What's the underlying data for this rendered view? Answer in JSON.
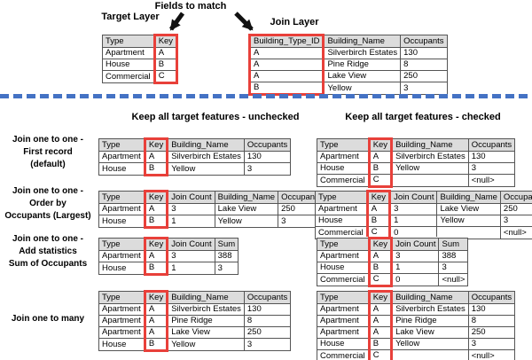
{
  "colors": {
    "red": "#e8403a",
    "blue": "#4472c4",
    "gray": "#dcdcdc"
  },
  "top": {
    "fields_to_match_label": "Fields to match",
    "target_layer_label": "Target Layer",
    "join_layer_label": "Join Layer",
    "target_table": {
      "columns": [
        "Type",
        "Key"
      ],
      "highlight_col": 1,
      "rows": [
        [
          "Apartment",
          "A"
        ],
        [
          "House",
          "B"
        ],
        [
          "Commercial",
          "C"
        ]
      ]
    },
    "join_table": {
      "columns": [
        "Building_Type_ID",
        "Building_Name",
        "Occupants"
      ],
      "highlight_col": 0,
      "rows": [
        [
          "A",
          "Silverbirch Estates",
          "130"
        ],
        [
          "A",
          "Pine Ridge",
          "8"
        ],
        [
          "A",
          "Lake View",
          "250"
        ],
        [
          "B",
          "Yellow",
          "3"
        ]
      ]
    }
  },
  "headers": {
    "unchecked": "Keep all target features - unchecked",
    "checked": "Keep all target features - checked"
  },
  "join_rows": [
    {
      "label_lines": [
        "Join one to one -",
        "First record",
        "(default)"
      ],
      "unchecked_table": {
        "columns": [
          "Type",
          "Key",
          "Building_Name",
          "Occupants"
        ],
        "highlight_col": 1,
        "rows": [
          [
            "Apartment",
            "A",
            "Silverbirch Estates",
            "130"
          ],
          [
            "House",
            "B",
            "Yellow",
            "3"
          ]
        ]
      },
      "checked_table": {
        "columns": [
          "Type",
          "Key",
          "Building_Name",
          "Occupants"
        ],
        "highlight_col": 1,
        "rows": [
          [
            "Apartment",
            "A",
            "Silverbirch Estates",
            "130"
          ],
          [
            "House",
            "B",
            "Yellow",
            "3"
          ],
          [
            "Commercial",
            "C",
            "",
            "<null>"
          ]
        ]
      }
    },
    {
      "label_lines": [
        "Join one to one -",
        "Order by",
        "Occupants (Largest)"
      ],
      "unchecked_table": {
        "columns": [
          "Type",
          "Key",
          "Join Count",
          "Building_Name",
          "Occupants"
        ],
        "highlight_col": 1,
        "rows": [
          [
            "Apartment",
            "A",
            "3",
            "Lake View",
            "250"
          ],
          [
            "House",
            "B",
            "1",
            "Yellow",
            "3"
          ]
        ]
      },
      "checked_table": {
        "columns": [
          "Type",
          "Key",
          "Join Count",
          "Building_Name",
          "Occupants"
        ],
        "highlight_col": 1,
        "rows": [
          [
            "Apartment",
            "A",
            "3",
            "Lake View",
            "250"
          ],
          [
            "House",
            "B",
            "1",
            "Yellow",
            "3"
          ],
          [
            "Commercial",
            "C",
            "0",
            "",
            "<null>"
          ]
        ]
      }
    },
    {
      "label_lines": [
        "Join one to one -",
        "Add statistics",
        "Sum of Occupants"
      ],
      "unchecked_table": {
        "columns": [
          "Type",
          "Key",
          "Join Count",
          "Sum"
        ],
        "highlight_col": 1,
        "rows": [
          [
            "Apartment",
            "A",
            "3",
            "388"
          ],
          [
            "House",
            "B",
            "1",
            "3"
          ]
        ]
      },
      "checked_table": {
        "columns": [
          "Type",
          "Key",
          "Join Count",
          "Sum"
        ],
        "highlight_col": 1,
        "rows": [
          [
            "Apartment",
            "A",
            "3",
            "388"
          ],
          [
            "House",
            "B",
            "1",
            "3"
          ],
          [
            "Commercial",
            "C",
            "0",
            "<null>"
          ]
        ]
      }
    },
    {
      "label_lines": [
        "Join one to many"
      ],
      "unchecked_table": {
        "columns": [
          "Type",
          "Key",
          "Building_Name",
          "Occupants"
        ],
        "highlight_col": 1,
        "rows": [
          [
            "Apartment",
            "A",
            "Silverbirch Estates",
            "130"
          ],
          [
            "Apartment",
            "A",
            "Pine Ridge",
            "8"
          ],
          [
            "Apartment",
            "A",
            "Lake View",
            "250"
          ],
          [
            "House",
            "B",
            "Yellow",
            "3"
          ]
        ]
      },
      "checked_table": {
        "columns": [
          "Type",
          "Key",
          "Building_Name",
          "Occupants"
        ],
        "highlight_col": 1,
        "rows": [
          [
            "Apartment",
            "A",
            "Silverbirch Estates",
            "130"
          ],
          [
            "Apartment",
            "A",
            "Pine Ridge",
            "8"
          ],
          [
            "Apartment",
            "A",
            "Lake View",
            "250"
          ],
          [
            "House",
            "B",
            "Yellow",
            "3"
          ],
          [
            "Commercial",
            "C",
            "",
            "<null>"
          ]
        ]
      }
    }
  ]
}
